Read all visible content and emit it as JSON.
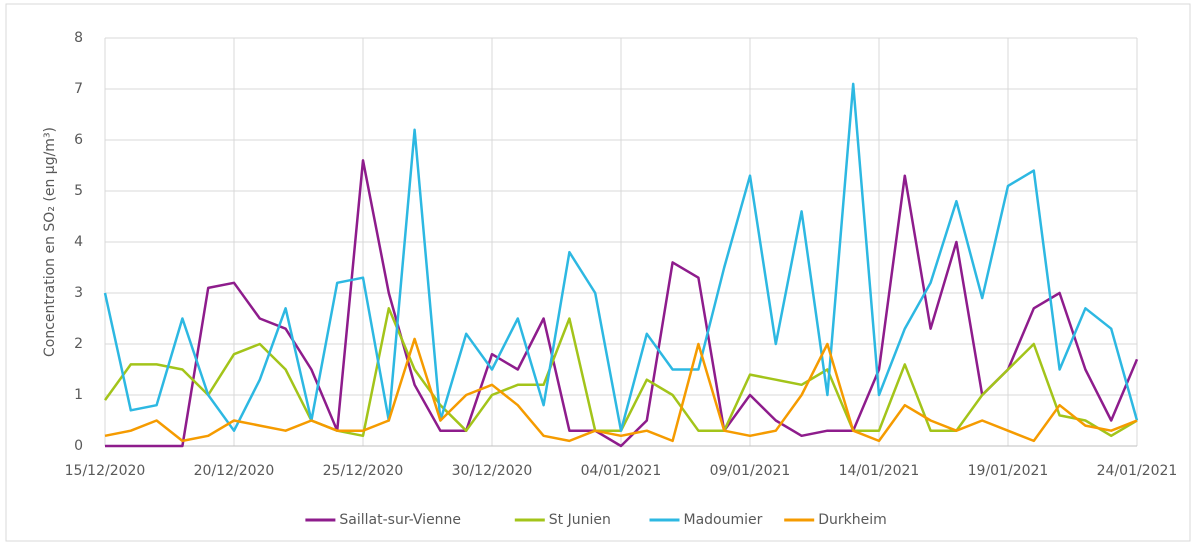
{
  "chart_data": {
    "type": "line",
    "y_label": "Concentration en SO₂ (en µg/m³)",
    "x": [
      "15/12/2020",
      "16/12/2020",
      "17/12/2020",
      "18/12/2020",
      "19/12/2020",
      "20/12/2020",
      "21/12/2020",
      "22/12/2020",
      "23/12/2020",
      "24/12/2020",
      "25/12/2020",
      "26/12/2020",
      "27/12/2020",
      "28/12/2020",
      "29/12/2020",
      "30/12/2020",
      "31/12/2020",
      "01/01/2021",
      "02/01/2021",
      "03/01/2021",
      "04/01/2021",
      "05/01/2021",
      "06/01/2021",
      "07/01/2021",
      "08/01/2021",
      "09/01/2021",
      "10/01/2021",
      "11/01/2021",
      "12/01/2021",
      "13/01/2021",
      "14/01/2021",
      "15/01/2021",
      "16/01/2021",
      "17/01/2021",
      "18/01/2021",
      "19/01/2021",
      "20/01/2021",
      "21/01/2021",
      "22/01/2021",
      "23/01/2021",
      "24/01/2021"
    ],
    "xticks": [
      "15/12/2020",
      "20/12/2020",
      "25/12/2020",
      "30/12/2020",
      "04/01/2021",
      "09/01/2021",
      "14/01/2021",
      "19/01/2021",
      "24/01/2021"
    ],
    "ylim": [
      0,
      8
    ],
    "yticks": [
      0,
      1,
      2,
      3,
      4,
      5,
      6,
      7,
      8
    ],
    "grid": true,
    "legend": "bottom",
    "series": [
      {
        "name": "Saillat-sur-Vienne",
        "color": "#8e1c8c",
        "values": [
          0,
          0,
          0,
          0,
          3.1,
          3.2,
          2.5,
          2.3,
          1.5,
          0.3,
          5.6,
          3.0,
          1.2,
          0.3,
          0.3,
          1.8,
          1.5,
          2.5,
          0.3,
          0.3,
          0,
          0.5,
          3.6,
          3.3,
          0.3,
          1.0,
          0.5,
          0.2,
          0.3,
          0.3,
          1.5,
          5.3,
          2.3,
          4.0,
          1.0,
          1.5,
          2.7,
          3.0,
          1.5,
          0.5,
          1.7
        ]
      },
      {
        "name": "St Junien",
        "color": "#a3c41a",
        "values": [
          0.9,
          1.6,
          1.6,
          1.5,
          1.0,
          1.8,
          2.0,
          1.5,
          0.5,
          0.3,
          0.2,
          2.7,
          1.5,
          0.8,
          0.3,
          1.0,
          1.2,
          1.2,
          2.5,
          0.3,
          0.3,
          1.3,
          1.0,
          0.3,
          0.3,
          1.4,
          1.3,
          1.2,
          1.5,
          0.3,
          0.3,
          1.6,
          0.3,
          0.3,
          1.0,
          1.5,
          2.0,
          0.6,
          0.5,
          0.2,
          0.5
        ]
      },
      {
        "name": "Madoumier",
        "color": "#2db8e2",
        "values": [
          3.0,
          0.7,
          0.8,
          2.5,
          1.0,
          0.3,
          1.3,
          2.7,
          0.5,
          3.2,
          3.3,
          0.5,
          6.2,
          0.5,
          2.2,
          1.5,
          2.5,
          0.8,
          3.8,
          3.0,
          0.3,
          2.2,
          1.5,
          1.5,
          3.5,
          5.3,
          2.0,
          4.6,
          1.0,
          7.1,
          1.0,
          2.3,
          3.2,
          4.8,
          2.9,
          5.1,
          5.4,
          1.5,
          2.7,
          2.3,
          0.5
        ]
      },
      {
        "name": "Durkheim",
        "color": "#f59b00",
        "values": [
          0.2,
          0.3,
          0.5,
          0.1,
          0.2,
          0.5,
          0.4,
          0.3,
          0.5,
          0.3,
          0.3,
          0.5,
          2.1,
          0.5,
          1.0,
          1.2,
          0.8,
          0.2,
          0.1,
          0.3,
          0.2,
          0.3,
          0.1,
          2.0,
          0.3,
          0.2,
          0.3,
          1.0,
          2.0,
          0.3,
          0.1,
          0.8,
          0.5,
          0.3,
          0.5,
          0.3,
          0.1,
          0.8,
          0.4,
          0.3,
          0.5
        ]
      }
    ]
  }
}
